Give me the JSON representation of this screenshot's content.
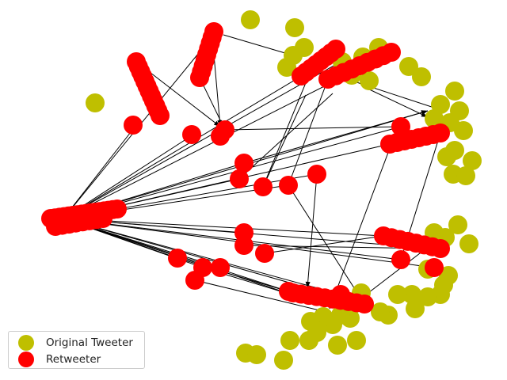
{
  "legend": {
    "items": [
      {
        "label": "Original Tweeter",
        "color": "#bfbf00"
      },
      {
        "label": "Retweeter",
        "color": "#ff0000"
      }
    ]
  },
  "colors": {
    "original": "#bfbf00",
    "retweeter": "#ff0000",
    "edge": "#000000"
  }
}
